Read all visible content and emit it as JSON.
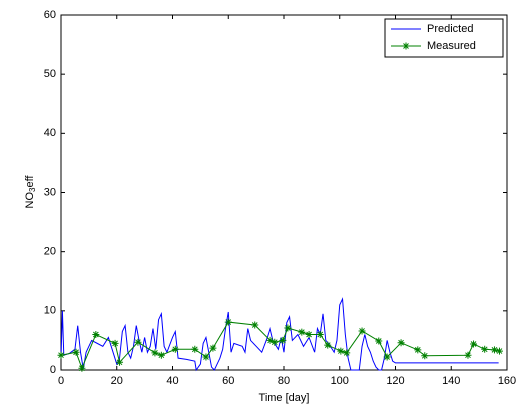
{
  "chart_data": {
    "type": "line",
    "xlabel": "Time   [day]",
    "ylabel_parts": [
      "NO",
      "3",
      "eff"
    ],
    "xlim": [
      0,
      160
    ],
    "xticks": [
      0,
      20,
      40,
      60,
      80,
      100,
      120,
      140,
      160
    ],
    "ylim": [
      0,
      60
    ],
    "yticks": [
      0,
      10,
      20,
      30,
      40,
      50,
      60
    ],
    "legend": "upper right",
    "series": [
      {
        "name": "Predicted",
        "color": "#0000ff",
        "marker": "none",
        "x": [
          0,
          0.5,
          1,
          3,
          5,
          6,
          7,
          8,
          9,
          10,
          11,
          13,
          15,
          17,
          19,
          20,
          21,
          22,
          23,
          24,
          25,
          26,
          27,
          28,
          29,
          30,
          31,
          32,
          33,
          34,
          35,
          36,
          37,
          38,
          40,
          41,
          42,
          45,
          48,
          48.5,
          50,
          51,
          52,
          53,
          54,
          55,
          56,
          57,
          58,
          59,
          60,
          61,
          62,
          65,
          66,
          67,
          68,
          70,
          72,
          74,
          75,
          76,
          78,
          79,
          80,
          81,
          82,
          83,
          85,
          87,
          89,
          91,
          92,
          93,
          94,
          95,
          96,
          98,
          99,
          100,
          101,
          102,
          103,
          104,
          106,
          107,
          108,
          109,
          110,
          111,
          112,
          113,
          114,
          115,
          116,
          117,
          118,
          119,
          120,
          122,
          157
        ],
        "values": [
          2,
          10,
          2.5,
          2.8,
          3.5,
          7.5,
          3,
          0.2,
          3,
          4,
          5,
          4.5,
          4,
          5.5,
          2.5,
          1,
          2,
          6.5,
          7.5,
          3,
          2,
          4,
          7.5,
          5,
          3,
          5.5,
          3,
          4,
          7,
          3.5,
          8.5,
          9.5,
          4,
          3,
          5.5,
          6.5,
          2,
          1.8,
          1.5,
          0,
          1,
          4.5,
          5.5,
          3,
          0.5,
          0,
          1,
          2,
          3.5,
          7,
          9.8,
          3,
          4.5,
          4,
          3,
          7,
          5,
          4,
          3,
          5.5,
          7,
          5,
          3.5,
          5.5,
          3,
          8,
          9,
          5,
          6,
          4,
          5.5,
          3,
          7,
          6,
          9.5,
          5,
          4.5,
          3,
          5,
          11,
          12,
          6,
          2,
          0,
          0,
          0,
          4,
          6,
          4,
          3,
          1.5,
          0.5,
          0,
          0,
          2,
          5,
          3,
          1.5,
          1.2,
          1.2,
          1.2
        ]
      },
      {
        "name": "Measured",
        "color": "#008000",
        "marker": "star",
        "x": [
          0,
          5.4,
          7.5,
          12.5,
          19.4,
          21,
          27.6,
          33.7,
          36,
          41,
          48,
          52,
          54.5,
          60,
          69.5,
          75,
          76.7,
          79.6,
          81.4,
          86.4,
          89,
          93,
          95.7,
          100.4,
          102.5,
          108,
          114,
          117,
          122,
          128,
          130.5,
          146,
          148,
          152,
          155.5,
          157.3
        ],
        "values": [
          2.5,
          3,
          0.3,
          6,
          4.5,
          1.3,
          4.7,
          2.9,
          2.5,
          3.5,
          3.5,
          2.2,
          3.7,
          8.1,
          7.6,
          5,
          4.7,
          5,
          7.1,
          6.4,
          6,
          6,
          4.2,
          3.2,
          2.9,
          6.6,
          4.9,
          2.2,
          4.6,
          3.4,
          2.4,
          2.5,
          4.4,
          3.5,
          3.4,
          3.2
        ]
      }
    ]
  }
}
